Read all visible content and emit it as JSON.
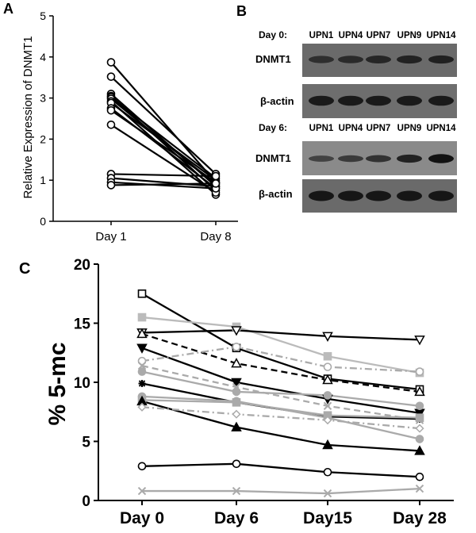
{
  "panels": {
    "a_letter": "A",
    "b_letter": "B",
    "c_letter": "C"
  },
  "blot": {
    "day0_label": "Day 0:",
    "day6_label": "Day 6:",
    "lanes": [
      "UPN1",
      "UPN4",
      "UPN7",
      "UPN9",
      "UPN14"
    ],
    "dnmt1_label": "DNMT1",
    "actin_label": "β-actin",
    "day0_dnmt1_intensity": [
      0.55,
      0.6,
      0.65,
      0.7,
      0.72
    ],
    "day0_actin_intensity": [
      0.8,
      0.8,
      0.8,
      0.8,
      0.8
    ],
    "day6_dnmt1_intensity": [
      0.3,
      0.4,
      0.5,
      0.7,
      0.9
    ],
    "day6_actin_intensity": [
      0.85,
      0.85,
      0.85,
      0.85,
      0.85
    ]
  },
  "chart_data": [
    {
      "type": "line",
      "ylabel": "Relative Expression of DNMT1",
      "categories": [
        "Day 1",
        "Day 8"
      ],
      "ylim": [
        0,
        5
      ],
      "yticks": [
        "0",
        "1",
        "2",
        "3",
        "4",
        "5"
      ],
      "marker": "circle",
      "color": "#000000",
      "pairs": [
        [
          3.87,
          0.95
        ],
        [
          3.52,
          1.15
        ],
        [
          3.1,
          0.85
        ],
        [
          3.05,
          0.75
        ],
        [
          3.02,
          1.05
        ],
        [
          2.98,
          0.9
        ],
        [
          2.92,
          0.65
        ],
        [
          2.88,
          1.0
        ],
        [
          2.75,
          0.8
        ],
        [
          2.7,
          0.95
        ],
        [
          2.35,
          0.7
        ],
        [
          1.15,
          1.1
        ],
        [
          1.05,
          0.85
        ],
        [
          0.95,
          0.8
        ],
        [
          0.88,
          0.92
        ]
      ]
    },
    {
      "type": "line",
      "ylabel": "% 5-mc",
      "categories": [
        "Day 0",
        "Day 6",
        "Day15",
        "Day 28"
      ],
      "ylim": [
        0,
        20
      ],
      "yticks": [
        "0",
        "5",
        "10",
        "15",
        "20"
      ],
      "series": [
        {
          "values": [
            17.5,
            12.9,
            10.3,
            9.4
          ],
          "color": "#000000",
          "dash": "solid",
          "marker": "square"
        },
        {
          "values": [
            15.5,
            14.7,
            12.2,
            10.8
          ],
          "color": "#bbbbbb",
          "dash": "solid",
          "marker": "square-filled"
        },
        {
          "values": [
            14.2,
            14.4,
            13.9,
            13.6
          ],
          "color": "#000000",
          "dash": "solid",
          "marker": "triangle-down"
        },
        {
          "values": [
            14.1,
            11.6,
            10.2,
            9.2
          ],
          "color": "#000000",
          "dash": "dashed",
          "marker": "triangle"
        },
        {
          "values": [
            12.9,
            10.0,
            8.6,
            7.4
          ],
          "color": "#000000",
          "dash": "solid",
          "marker": "triangle-down-filled"
        },
        {
          "values": [
            11.8,
            13.0,
            11.3,
            10.9
          ],
          "color": "#aaaaaa",
          "dash": "dashdot",
          "marker": "circle"
        },
        {
          "values": [
            11.4,
            9.6,
            8.0,
            6.8
          ],
          "color": "#aaaaaa",
          "dash": "dashed",
          "marker": "x"
        },
        {
          "values": [
            10.9,
            9.2,
            8.9,
            8.0
          ],
          "color": "#aaaaaa",
          "dash": "solid",
          "marker": "circle-filled"
        },
        {
          "values": [
            9.9,
            8.3,
            7.1,
            6.9
          ],
          "color": "#000000",
          "dash": "solid",
          "marker": "star"
        },
        {
          "values": [
            8.8,
            8.4,
            7.0,
            5.2
          ],
          "color": "#aaaaaa",
          "dash": "solid",
          "marker": "circle-filled"
        },
        {
          "values": [
            8.5,
            8.3,
            7.2,
            7.0
          ],
          "color": "#aaaaaa",
          "dash": "solid",
          "marker": "square-filled"
        },
        {
          "values": [
            8.4,
            6.2,
            4.7,
            4.2
          ],
          "color": "#000000",
          "dash": "solid",
          "marker": "triangle-filled"
        },
        {
          "values": [
            7.9,
            7.3,
            6.8,
            6.1
          ],
          "color": "#aaaaaa",
          "dash": "dashdot",
          "marker": "diamond"
        },
        {
          "values": [
            2.9,
            3.1,
            2.4,
            2.0
          ],
          "color": "#000000",
          "dash": "solid",
          "marker": "circle"
        },
        {
          "values": [
            0.8,
            0.8,
            0.6,
            1.0
          ],
          "color": "#aaaaaa",
          "dash": "solid",
          "marker": "x"
        }
      ]
    }
  ]
}
